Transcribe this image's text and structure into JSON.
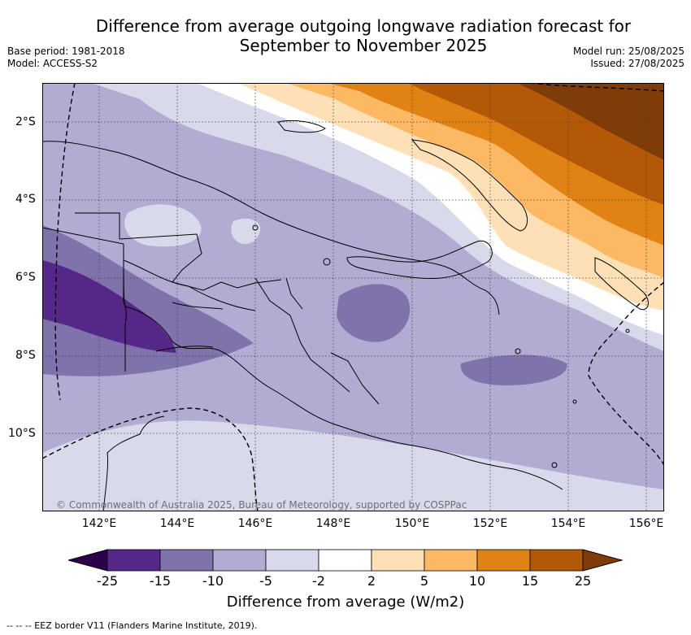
{
  "title_line1": "Difference from average outgoing longwave radiation forecast for",
  "title_line2": "September to November 2025",
  "meta_left": [
    "Base period: 1981-2018",
    "Model: ACCESS-S2"
  ],
  "meta_right": [
    "Model run: 25/08/2025",
    "Issued: 27/08/2025"
  ],
  "x_ticks": [
    "142°E",
    "144°E",
    "146°E",
    "148°E",
    "150°E",
    "152°E",
    "154°E",
    "156°E"
  ],
  "y_ticks": [
    "2°S",
    "4°S",
    "6°S",
    "8°S",
    "10°S"
  ],
  "copyright": "© Commonwealth of Australia 2025, Bureau of Meteorology, supported by COSPPac",
  "colorbar": {
    "labels": [
      "-25",
      "-15",
      "-10",
      "-5",
      "-2",
      "2",
      "5",
      "10",
      "15",
      "25"
    ],
    "colors": [
      "#2d004b",
      "#542788",
      "#8073ac",
      "#b2abd2",
      "#d8daeb",
      "#ffffff",
      "#fee0b6",
      "#fdb863",
      "#e08214",
      "#b35806",
      "#7f3b08"
    ],
    "title": "Difference from average (W/m2)"
  },
  "footer": "--  --  -- EEZ border V11 (Flanders Marine Institute, 2019)."
}
